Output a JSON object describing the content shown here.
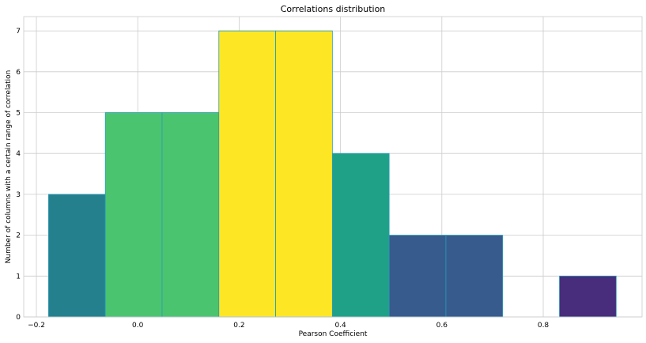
{
  "chart_data": {
    "type": "bar",
    "title": "Correlations distribution",
    "xlabel": "Pearson Coefficient",
    "ylabel": "Number of columns with a certain range of correlation",
    "xlim": [
      -0.225,
      0.995
    ],
    "ylim": [
      0,
      7.35
    ],
    "x_ticks": [
      -0.2,
      0.0,
      0.2,
      0.4,
      0.6,
      0.8
    ],
    "x_tick_labels": [
      "−0.2",
      "0.0",
      "0.2",
      "0.4",
      "0.6",
      "0.8"
    ],
    "y_ticks": [
      0,
      1,
      2,
      3,
      4,
      5,
      6,
      7
    ],
    "grid": true,
    "bins": [
      {
        "x0": -0.176,
        "x1": -0.064,
        "count": 3,
        "color": "#25808e"
      },
      {
        "x0": -0.064,
        "x1": 0.048,
        "count": 5,
        "color": "#4bc46f"
      },
      {
        "x0": 0.048,
        "x1": 0.16,
        "count": 5,
        "color": "#4bc46f"
      },
      {
        "x0": 0.16,
        "x1": 0.272,
        "count": 7,
        "color": "#fde725"
      },
      {
        "x0": 0.272,
        "x1": 0.384,
        "count": 7,
        "color": "#fde725"
      },
      {
        "x0": 0.384,
        "x1": 0.496,
        "count": 4,
        "color": "#1fa187"
      },
      {
        "x0": 0.496,
        "x1": 0.608,
        "count": 2,
        "color": "#375b8d"
      },
      {
        "x0": 0.608,
        "x1": 0.72,
        "count": 2,
        "color": "#375b8d"
      },
      {
        "x0": 0.72,
        "x1": 0.832,
        "count": 0,
        "color": "#440154"
      },
      {
        "x0": 0.832,
        "x1": 0.944,
        "count": 1,
        "color": "#472d7b"
      }
    ]
  }
}
